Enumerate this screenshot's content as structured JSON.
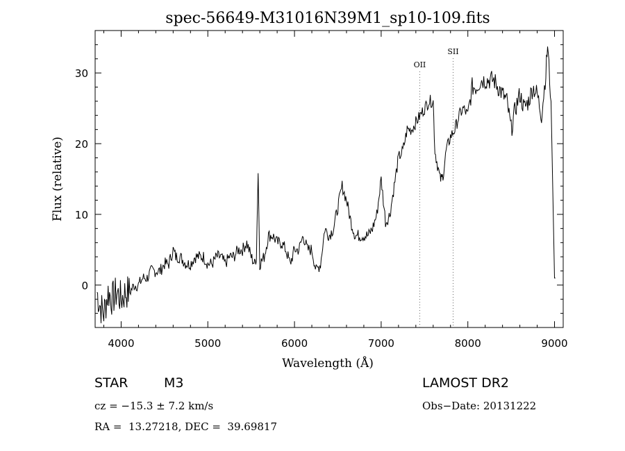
{
  "chart_data": {
    "type": "line",
    "title": "spec-56649-M31016N39M1_sp10-109.fits",
    "xlabel": "Wavelength (Å)",
    "ylabel": "Flux (relative)",
    "xlim": [
      3700,
      9100
    ],
    "ylim": [
      -6,
      36
    ],
    "xticks": [
      4000,
      5000,
      6000,
      7000,
      8000,
      9000
    ],
    "yticks": [
      0,
      10,
      20,
      30
    ],
    "xtick_labels": [
      "4000",
      "5000",
      "6000",
      "7000",
      "8000",
      "9000"
    ],
    "ytick_labels": [
      "0",
      "10",
      "20",
      "30"
    ],
    "grid": false,
    "lines": [
      {
        "name": "OII",
        "x": 7445
      },
      {
        "name": "SII",
        "x": 7830
      }
    ],
    "series": [
      {
        "x": [
          3720,
          3760,
          3800,
          3850,
          3900,
          3950,
          4000,
          4050,
          4100,
          4150,
          4200,
          4250,
          4300,
          4350,
          4400,
          4450,
          4500,
          4550,
          4600,
          4630,
          4680,
          4750,
          4800,
          4850,
          4900,
          4950,
          5000,
          5050,
          5100,
          5150,
          5200,
          5250,
          5300,
          5350,
          5400,
          5450,
          5500,
          5540,
          5560,
          5580,
          5600,
          5650,
          5700,
          5750,
          5800,
          5850,
          5900,
          5950,
          6000,
          6050,
          6100,
          6150,
          6200,
          6250,
          6300,
          6350,
          6400,
          6450,
          6500,
          6550,
          6600,
          6650,
          6700,
          6750,
          6800,
          6850,
          6900,
          6950,
          7000,
          7050,
          7060,
          7100,
          7150,
          7200,
          7250,
          7300,
          7350,
          7400,
          7450,
          7500,
          7550,
          7600,
          7620,
          7650,
          7680,
          7700,
          7720,
          7750,
          7800,
          7850,
          7900,
          7950,
          8000,
          8050,
          8100,
          8150,
          8200,
          8250,
          8300,
          8350,
          8400,
          8450,
          8500,
          8550,
          8600,
          8650,
          8700,
          8750,
          8800,
          8850,
          8900,
          8920,
          8960,
          9000,
          9010
        ],
        "values": [
          -1,
          -3,
          -4,
          -1,
          -2,
          -1,
          -2,
          -1,
          -1,
          0,
          0,
          1,
          1,
          2,
          2,
          2,
          3,
          3,
          5,
          4,
          4,
          3,
          3,
          4,
          4,
          4,
          3,
          3,
          4,
          4,
          3,
          4,
          4,
          5,
          5,
          6,
          4,
          3,
          4,
          16,
          3,
          4,
          7,
          7,
          6,
          6,
          5,
          3,
          5,
          5,
          7,
          5,
          5,
          2,
          3,
          8,
          7,
          8,
          11,
          14,
          12,
          9,
          7,
          7,
          7,
          7,
          8,
          10,
          15,
          9,
          9,
          10,
          14,
          18,
          19,
          22,
          22,
          23,
          24,
          25,
          26,
          26,
          19,
          17,
          15,
          15,
          16,
          19,
          21,
          22,
          24,
          25,
          24,
          28,
          28,
          29,
          29,
          29,
          29,
          28,
          27,
          26,
          22,
          25,
          27,
          25,
          26,
          28,
          27,
          24,
          30,
          34,
          26,
          1,
          1
        ]
      }
    ]
  },
  "info": {
    "class_label": "STAR",
    "subclass": "M3",
    "survey": "LAMOST DR2",
    "cz": "cz = −15.3 ± 7.2 km/s",
    "obs_date": "Obs−Date: 20131222",
    "radec": "RA =  13.27218, DEC =  39.69817"
  }
}
